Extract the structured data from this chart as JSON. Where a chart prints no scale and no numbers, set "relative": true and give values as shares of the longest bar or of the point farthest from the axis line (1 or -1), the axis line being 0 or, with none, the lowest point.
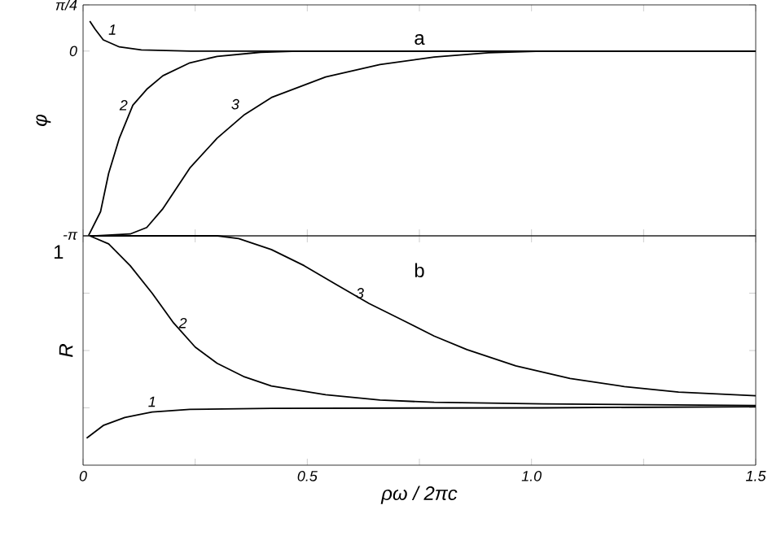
{
  "chart_data": [
    {
      "type": "line",
      "ylabel": "φ",
      "annotations": [
        "a"
      ],
      "xlim": [
        0,
        1.5
      ],
      "xticks": [
        {
          "value": 0,
          "label": null
        },
        {
          "value": 0.25,
          "label": null
        },
        {
          "value": 0.5,
          "label": null
        },
        {
          "value": 0.75,
          "label": null
        },
        {
          "value": 1.0,
          "label": null
        },
        {
          "value": 1.25,
          "label": null
        },
        {
          "value": 1.5,
          "label": null
        }
      ],
      "ylim": [
        -3.1416,
        0.7854
      ],
      "yticks": [
        {
          "value": 0.7854,
          "label": "π/4"
        },
        0,
        {
          "value": -3.1416,
          "label": "-π"
        }
      ],
      "tick_labels": "y",
      "grid": false,
      "marker": "none",
      "line_style": "solid",
      "series": [
        {
          "name": "1",
          "color": "#000000",
          "x": [
            0.015,
            0.027,
            0.045,
            0.081,
            0.13,
            0.24,
            1.5
          ],
          "values": [
            0.51,
            0.37,
            0.19,
            0.07,
            0.02,
            0.0,
            0.0
          ]
        },
        {
          "name": "2",
          "color": "#000000",
          "x": [
            0.012,
            0.039,
            0.057,
            0.081,
            0.111,
            0.142,
            0.178,
            0.238,
            0.299,
            0.396,
            0.48,
            1.5
          ],
          "values": [
            -3.14,
            -2.73,
            -2.08,
            -1.48,
            -0.92,
            -0.65,
            -0.42,
            -0.2,
            -0.09,
            -0.02,
            0.0,
            0.0
          ]
        },
        {
          "name": "3",
          "color": "#000000",
          "x": [
            0.03,
            0.105,
            0.142,
            0.178,
            0.238,
            0.299,
            0.36,
            0.42,
            0.541,
            0.662,
            0.783,
            0.904,
            1.025,
            1.5
          ],
          "values": [
            -3.14,
            -3.11,
            -3.0,
            -2.68,
            -1.99,
            -1.48,
            -1.08,
            -0.79,
            -0.44,
            -0.23,
            -0.1,
            -0.03,
            0.0,
            0.0
          ]
        }
      ]
    },
    {
      "type": "line",
      "xlabel": "ρω / 2πc",
      "ylabel": "R",
      "annotations": [
        "b",
        "1"
      ],
      "relative": true,
      "xlim": [
        0,
        1.5
      ],
      "xticks": [
        0,
        {
          "value": 0.25,
          "label": null
        },
        0.5,
        {
          "value": 0.75,
          "label": null
        },
        {
          "value": 1.0,
          "label": "1.0"
        },
        {
          "value": 1.25,
          "label": null
        },
        1.5
      ],
      "tick_labels": "x",
      "grid": false,
      "marker": "none",
      "line_style": "solid",
      "series": [
        {
          "name": "1",
          "color": "#000000",
          "x": [
            0.008,
            0.045,
            0.093,
            0.154,
            0.238,
            0.42,
            1.025,
            1.5
          ],
          "values": [
            0.118,
            0.173,
            0.208,
            0.232,
            0.243,
            0.248,
            0.25,
            0.255
          ]
        },
        {
          "name": "2",
          "color": "#000000",
          "x": [
            0.015,
            0.057,
            0.105,
            0.154,
            0.202,
            0.25,
            0.299,
            0.36,
            0.42,
            0.541,
            0.662,
            0.783,
            1.025,
            1.5
          ],
          "values": [
            1.0,
            0.965,
            0.87,
            0.75,
            0.62,
            0.515,
            0.444,
            0.385,
            0.345,
            0.307,
            0.284,
            0.274,
            0.267,
            0.26
          ]
        },
        {
          "name": "3",
          "color": "#000000",
          "x": [
            0.015,
            0.3,
            0.347,
            0.42,
            0.493,
            0.565,
            0.638,
            0.711,
            0.783,
            0.856,
            0.965,
            1.086,
            1.207,
            1.328,
            1.5
          ],
          "values": [
            1.0,
            1.0,
            0.988,
            0.94,
            0.87,
            0.787,
            0.705,
            0.634,
            0.563,
            0.504,
            0.433,
            0.378,
            0.343,
            0.319,
            0.303
          ]
        }
      ]
    }
  ]
}
